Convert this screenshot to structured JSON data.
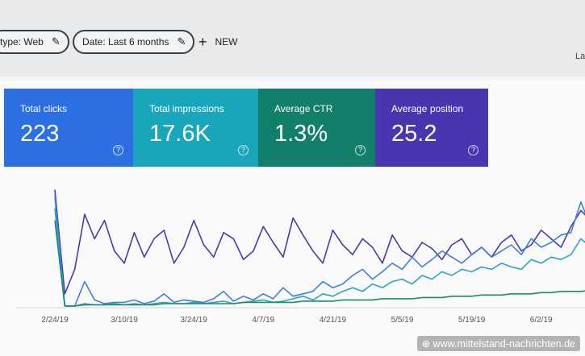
{
  "toolbar": {
    "filters": [
      "type: Web",
      "Date: Last 6 months"
    ],
    "new": "NEW",
    "cut_off": "La"
  },
  "metrics": [
    {
      "label": "Total clicks",
      "value": 223,
      "color": "#2b6fe2"
    },
    {
      "label": "Total impressions",
      "value": "17.6K",
      "color": "#1aa6ba"
    },
    {
      "label": "Average CTR",
      "value": "1.3%",
      "color": "#127f6a"
    },
    {
      "label": "Average position",
      "value": 25.2,
      "color": "#4b34b0"
    }
  ],
  "chart": {
    "type": "line",
    "x": [
      "2/24/19",
      null,
      null,
      null,
      null,
      null,
      null,
      "3/10/19",
      null,
      null,
      null,
      null,
      null,
      null,
      "3/24/19",
      null,
      null,
      null,
      null,
      null,
      null,
      "4/7/19",
      null,
      null,
      null,
      null,
      null,
      null,
      "4/21/19",
      null,
      null,
      null,
      null,
      null,
      null,
      "5/5/19",
      null,
      null,
      null,
      null,
      null,
      null,
      "5/19/19",
      null,
      null,
      null,
      null,
      null,
      null,
      "6/2/19",
      null,
      null,
      null,
      null,
      null
    ],
    "ylim": [
      0,
      100
    ],
    "series": [
      {
        "color": "#4a3aa8",
        "values": [
          95,
          10,
          30,
          75,
          55,
          70,
          45,
          35,
          60,
          40,
          55,
          62,
          35,
          48,
          70,
          50,
          40,
          60,
          55,
          38,
          45,
          65,
          52,
          40,
          72,
          58,
          45,
          35,
          62,
          50,
          42,
          55,
          48,
          35,
          58,
          45,
          40,
          52,
          47,
          38,
          50,
          55,
          42,
          48,
          40,
          52,
          58,
          45,
          50,
          62,
          55,
          48,
          65,
          78,
          70
        ]
      },
      {
        "color": "#3f7fd8",
        "values": [
          90,
          0,
          0,
          20,
          5,
          2,
          3,
          3,
          5,
          2,
          4,
          10,
          3,
          5,
          4,
          3,
          6,
          12,
          4,
          8,
          5,
          10,
          6,
          15,
          8,
          10,
          12,
          20,
          15,
          18,
          25,
          30,
          22,
          28,
          35,
          30,
          40,
          32,
          38,
          45,
          40,
          35,
          42,
          48,
          40,
          45,
          50,
          42,
          55,
          48,
          52,
          58,
          60,
          85,
          65
        ]
      },
      {
        "color": "#2aa7b8",
        "values": [
          80,
          0,
          0,
          2,
          1,
          1,
          2,
          1,
          2,
          1,
          2,
          3,
          2,
          2,
          3,
          2,
          3,
          4,
          2,
          3,
          4,
          5,
          3,
          4,
          6,
          8,
          5,
          10,
          8,
          12,
          15,
          12,
          18,
          15,
          20,
          22,
          18,
          25,
          22,
          28,
          25,
          30,
          28,
          32,
          30,
          35,
          32,
          30,
          38,
          35,
          40,
          38,
          42,
          55,
          48
        ]
      },
      {
        "color": "#1d8a6c",
        "values": [
          70,
          0,
          0,
          1,
          1,
          1,
          1,
          1,
          1,
          1,
          1,
          2,
          2,
          2,
          2,
          2,
          2,
          2,
          2,
          3,
          3,
          3,
          3,
          3,
          3,
          4,
          4,
          4,
          4,
          5,
          5,
          5,
          5,
          6,
          6,
          6,
          6,
          7,
          7,
          7,
          8,
          8,
          8,
          9,
          9,
          9,
          10,
          10,
          10,
          11,
          11,
          12,
          12,
          12,
          13
        ]
      }
    ]
  },
  "watermark": "www.mittelstand-nachrichten.de"
}
